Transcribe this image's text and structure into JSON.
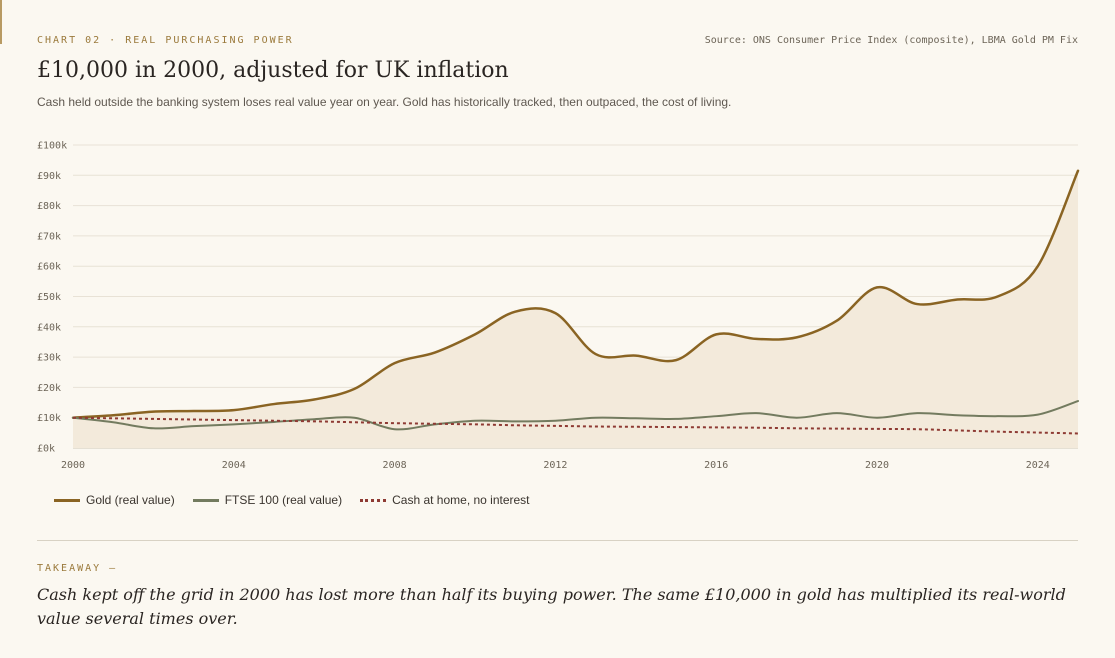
{
  "header": {
    "eyebrow": "CHART 02 · REAL PURCHASING POWER",
    "source": "Source: ONS Consumer Price Index (composite), LBMA Gold PM Fix",
    "title": "£10,000 in 2000, adjusted for UK inflation",
    "subtitle": "Cash held outside the banking system loses real value year on year. Gold has historically tracked, then outpaced, the cost of living."
  },
  "chart_data": {
    "type": "line",
    "x": [
      2000,
      2001,
      2002,
      2003,
      2004,
      2005,
      2006,
      2007,
      2008,
      2009,
      2010,
      2011,
      2012,
      2013,
      2014,
      2015,
      2016,
      2017,
      2018,
      2019,
      2020,
      2021,
      2022,
      2023,
      2024,
      2025
    ],
    "series": [
      {
        "name": "Gold (real value)",
        "color": "#8a6423",
        "values": [
          10,
          10.8,
          12,
          12.2,
          12.5,
          14.5,
          16,
          19.5,
          28,
          31.5,
          37.5,
          45,
          44.5,
          31,
          30.5,
          29,
          37.5,
          36,
          36.5,
          42,
          53,
          47.5,
          49,
          50,
          60,
          91.5
        ]
      },
      {
        "name": "FTSE 100 (real value)",
        "color": "#737b5f",
        "values": [
          10,
          8.5,
          6.5,
          7.2,
          7.8,
          8.6,
          9.5,
          10,
          6.2,
          7.8,
          9,
          8.8,
          9,
          10,
          9.8,
          9.6,
          10.5,
          11.5,
          10,
          11.5,
          10,
          11.5,
          10.8,
          10.5,
          11,
          15.5
        ]
      },
      {
        "name": "Cash at home, no interest",
        "color": "#8e3a33",
        "values": [
          10,
          9.8,
          9.6,
          9.4,
          9.2,
          9,
          8.8,
          8.5,
          8.2,
          8,
          7.8,
          7.5,
          7.3,
          7.1,
          7,
          6.9,
          6.8,
          6.7,
          6.5,
          6.4,
          6.3,
          6.2,
          5.8,
          5.4,
          5.1,
          4.8
        ]
      }
    ],
    "y_ticks": [
      "£0k",
      "£10k",
      "£20k",
      "£30k",
      "£40k",
      "£50k",
      "£60k",
      "£70k",
      "£80k",
      "£90k",
      "£100k"
    ],
    "x_ticks": [
      "2000",
      "2004",
      "2008",
      "2012",
      "2016",
      "2020",
      "2024"
    ],
    "ylim": [
      0,
      100
    ],
    "xlim": [
      2000,
      2025
    ],
    "grid": true,
    "legend_position": "bottom-left"
  },
  "footer": {
    "takeaway_label": "TAKEAWAY —",
    "takeaway": "Cash kept off the grid in 2000 has lost more than half its buying power. The same £10,000 in gold has multiplied its real-world value several times over."
  }
}
